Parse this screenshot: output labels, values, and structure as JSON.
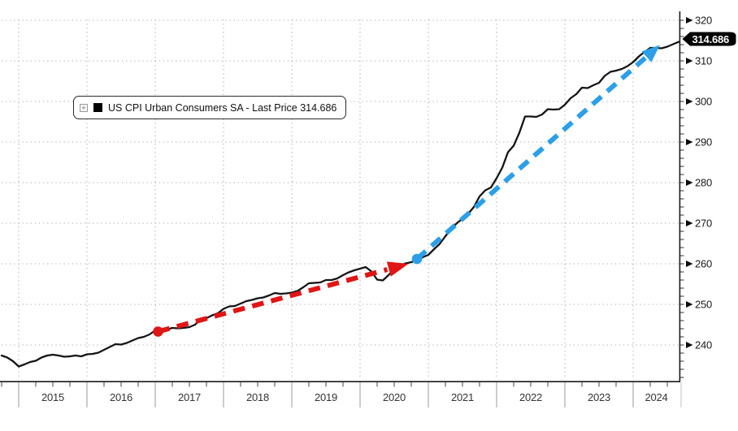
{
  "legend": {
    "expand_glyph": "+",
    "swatch_color": "#000000",
    "label": "US CPI Urban Consumers SA - Last Price 314.686"
  },
  "price_tag": {
    "text": "314.686",
    "bg": "#000000",
    "fg": "#ffffff"
  },
  "colors": {
    "line": "#141414",
    "red_arrow": "#e01515",
    "blue_arrow": "#2d9fe8",
    "grid": "#adadad",
    "axis": "#1a1a1a",
    "separator": "#aaaaaa"
  },
  "chart_data": {
    "type": "line",
    "title": "US CPI Urban Consumers SA",
    "legend_position": "top-left",
    "grid": "dotted",
    "frequency": "monthly",
    "start_month": "2014-10",
    "last_price": 314.686,
    "y_ticks": [
      240,
      250,
      260,
      270,
      280,
      290,
      300,
      310,
      320
    ],
    "ylim": [
      231,
      322
    ],
    "x_years": [
      "2015",
      "2016",
      "2017",
      "2018",
      "2019",
      "2020",
      "2021",
      "2022",
      "2023",
      "2024"
    ],
    "series": [
      {
        "name": "US CPI Urban Consumers SA",
        "values": [
          237.4,
          236.9,
          236.0,
          234.7,
          235.2,
          235.8,
          236.1,
          236.9,
          237.4,
          237.6,
          237.4,
          237.1,
          237.2,
          237.4,
          237.2,
          237.7,
          237.8,
          238.1,
          238.8,
          239.5,
          240.2,
          240.1,
          240.5,
          241.1,
          241.7,
          242.0,
          242.6,
          243.6,
          243.9,
          243.8,
          244.2,
          244.1,
          244.2,
          244.4,
          245.0,
          246.4,
          246.6,
          247.3,
          247.8,
          248.9,
          249.5,
          249.6,
          250.2,
          250.8,
          251.1,
          251.5,
          251.7,
          252.2,
          252.8,
          252.6,
          252.7,
          252.9,
          253.3,
          254.2,
          255.2,
          255.3,
          255.4,
          256.0,
          256.0,
          256.4,
          257.2,
          257.9,
          258.4,
          258.8,
          259.2,
          258.1,
          256.1,
          255.9,
          257.2,
          258.7,
          259.6,
          260.1,
          260.4,
          260.9,
          261.6,
          262.2,
          263.6,
          264.9,
          266.8,
          268.6,
          270.0,
          271.1,
          272.3,
          274.0,
          276.6,
          278.1,
          278.8,
          281.1,
          283.7,
          287.5,
          289.1,
          292.3,
          296.3,
          296.3,
          296.2,
          296.8,
          298.1,
          298.0,
          298.1,
          299.2,
          300.8,
          301.8,
          303.4,
          303.3,
          304.0,
          304.6,
          306.3,
          307.3,
          307.6,
          308.0,
          308.7,
          309.7,
          311.1,
          312.2,
          313.2,
          313.2,
          313.1,
          313.5,
          314.1,
          314.686
        ]
      }
    ],
    "annotations": [
      {
        "type": "arrow",
        "name": "pre-covid-trend",
        "color_key": "red_arrow",
        "style": "dashed",
        "start_dot": true,
        "from": {
          "index": 27.5,
          "value": 243.3
        },
        "to": {
          "index": 71.5,
          "value": 260.0
        }
      },
      {
        "type": "arrow",
        "name": "post-covid-trend",
        "color_key": "blue_arrow",
        "style": "dashed",
        "start_dot": true,
        "from": {
          "index": 73.0,
          "value": 261.2
        },
        "to": {
          "index": 115.7,
          "value": 313.9
        }
      }
    ]
  }
}
